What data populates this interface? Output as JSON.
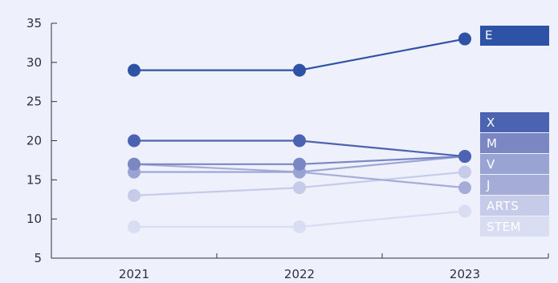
{
  "chart_data": {
    "type": "line",
    "x": [
      "2021",
      "2022",
      "2023"
    ],
    "ylim": [
      5,
      35
    ],
    "yticks": [
      5,
      10,
      15,
      20,
      25,
      30,
      35
    ],
    "grid": false,
    "legend_placement": "right",
    "series": [
      {
        "name": "E",
        "values": [
          29,
          29,
          33
        ],
        "color": "#2e52a6",
        "label_color": "#ffffff"
      },
      {
        "name": "X",
        "values": [
          20,
          20,
          18
        ],
        "color": "#4c63b1",
        "label_color": "#ffffff"
      },
      {
        "name": "M",
        "values": [
          17,
          17,
          18
        ],
        "color": "#7b87c3",
        "label_color": "#ffffff"
      },
      {
        "name": "V",
        "values": [
          16,
          16,
          18
        ],
        "color": "#9aa4d3",
        "label_color": "#ffffff"
      },
      {
        "name": "J",
        "values": [
          17,
          16,
          14
        ],
        "color": "#a6acd8",
        "label_color": "#2d3a7a"
      },
      {
        "name": "ARTS",
        "values": [
          13,
          14,
          16
        ],
        "color": "#c5cbe8",
        "label_color": "#2d3a7a"
      },
      {
        "name": "STEM",
        "values": [
          9,
          9,
          11
        ],
        "color": "#d9ddf1",
        "label_color": "#2d3a7a"
      }
    ]
  }
}
